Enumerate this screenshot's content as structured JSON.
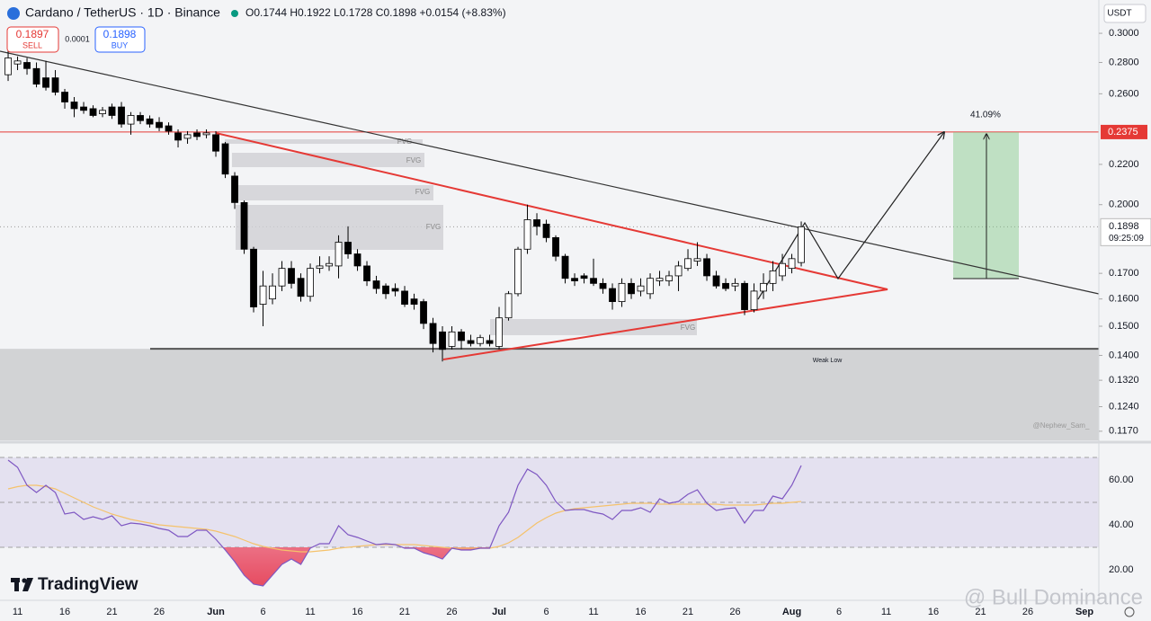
{
  "header": {
    "symbol": "Cardano / TetherUS · 1D · Binance",
    "ohlc": "O0.1744 H0.1922 L0.1728 C0.1898 +0.0154 (+8.83%)",
    "sell": {
      "price": "0.1897",
      "label": "SELL"
    },
    "spread": "0.0001",
    "buy": {
      "price": "0.1898",
      "label": "BUY"
    },
    "currency": "USDT"
  },
  "footer": {
    "brand": "TradingView",
    "watermark": "@ Bull Dominance"
  },
  "chart_data": [
    {
      "type": "candlestick",
      "log": true,
      "xlim": [
        -0.86,
        115.52
      ],
      "ylim": [
        0.1145,
        0.3246
      ],
      "yticks": [
        {
          "value": 0.3,
          "label": "0.3000"
        },
        {
          "value": 0.28,
          "label": "0.2800"
        },
        {
          "value": 0.26,
          "label": "0.2600"
        },
        {
          "value": 0.22,
          "label": "0.2200"
        },
        {
          "value": 0.2,
          "label": "0.2000"
        },
        {
          "value": 0.17,
          "label": "0.1700"
        },
        {
          "value": 0.16,
          "label": "0.1600"
        },
        {
          "value": 0.15,
          "label": "0.1500"
        },
        {
          "value": 0.14,
          "label": "0.1400"
        },
        {
          "value": 0.132,
          "label": "0.1320"
        },
        {
          "value": 0.124,
          "label": "0.1240"
        },
        {
          "value": 0.117,
          "label": "0.1170"
        }
      ],
      "xticks": [
        {
          "value": 1,
          "label": "11"
        },
        {
          "value": 6,
          "label": "16"
        },
        {
          "value": 11,
          "label": "21"
        },
        {
          "value": 16,
          "label": "26"
        },
        {
          "value": 22,
          "label": "Jun"
        },
        {
          "value": 27,
          "label": "6"
        },
        {
          "value": 32,
          "label": "11"
        },
        {
          "value": 37,
          "label": "16"
        },
        {
          "value": 42,
          "label": "21"
        },
        {
          "value": 47,
          "label": "26"
        },
        {
          "value": 52,
          "label": "Jul"
        },
        {
          "value": 57,
          "label": "6"
        },
        {
          "value": 62,
          "label": "11"
        },
        {
          "value": 67,
          "label": "16"
        },
        {
          "value": 72,
          "label": "21"
        },
        {
          "value": 77,
          "label": "26"
        },
        {
          "value": 83,
          "label": "Aug"
        },
        {
          "value": 88,
          "label": "6"
        },
        {
          "value": 93,
          "label": "11"
        },
        {
          "value": 98,
          "label": "16"
        },
        {
          "value": 103,
          "label": "21"
        },
        {
          "value": 108,
          "label": "26"
        },
        {
          "value": 114,
          "label": "Sep"
        }
      ],
      "open": [
        0.272,
        0.279,
        0.28,
        0.276,
        0.27,
        0.27,
        0.261,
        0.255,
        0.252,
        0.251,
        0.248,
        0.252,
        0.252,
        0.242,
        0.247,
        0.245,
        0.243,
        0.241,
        0.237,
        0.234,
        0.237,
        0.236,
        0.236,
        0.231,
        0.214,
        0.201,
        0.18,
        0.158,
        0.16,
        0.165,
        0.172,
        0.168,
        0.161,
        0.172,
        0.173,
        0.173,
        0.183,
        0.178,
        0.173,
        0.167,
        0.165,
        0.164,
        0.163,
        0.16,
        0.159,
        0.151,
        0.148,
        0.143,
        0.148,
        0.145,
        0.144,
        0.145,
        0.143,
        0.153,
        0.162,
        0.18,
        0.193,
        0.191,
        0.185,
        0.177,
        0.168,
        0.169,
        0.168,
        0.166,
        0.164,
        0.159,
        0.166,
        0.163,
        0.162,
        0.167,
        0.167,
        0.169,
        0.172,
        0.175,
        0.176,
        0.169,
        0.166,
        0.165,
        0.166,
        0.156,
        0.163,
        0.166,
        0.169,
        0.172,
        0.1744
      ],
      "high": [
        0.29,
        0.284,
        0.283,
        0.28,
        0.281,
        0.275,
        0.263,
        0.258,
        0.255,
        0.253,
        0.252,
        0.254,
        0.255,
        0.249,
        0.249,
        0.247,
        0.246,
        0.243,
        0.239,
        0.238,
        0.239,
        0.239,
        0.238,
        0.232,
        0.216,
        0.202,
        0.181,
        0.171,
        0.17,
        0.175,
        0.175,
        0.17,
        0.174,
        0.177,
        0.177,
        0.186,
        0.19,
        0.18,
        0.175,
        0.169,
        0.166,
        0.166,
        0.165,
        0.162,
        0.16,
        0.153,
        0.15,
        0.15,
        0.149,
        0.147,
        0.147,
        0.147,
        0.157,
        0.163,
        0.181,
        0.2,
        0.196,
        0.193,
        0.186,
        0.178,
        0.17,
        0.17,
        0.176,
        0.168,
        0.166,
        0.168,
        0.168,
        0.168,
        0.17,
        0.171,
        0.171,
        0.175,
        0.18,
        0.183,
        0.178,
        0.171,
        0.168,
        0.168,
        0.167,
        0.166,
        0.17,
        0.175,
        0.178,
        0.178,
        0.1922
      ],
      "low": [
        0.268,
        0.275,
        0.272,
        0.264,
        0.262,
        0.259,
        0.251,
        0.246,
        0.248,
        0.246,
        0.246,
        0.245,
        0.24,
        0.236,
        0.242,
        0.24,
        0.238,
        0.236,
        0.229,
        0.231,
        0.233,
        0.234,
        0.224,
        0.213,
        0.198,
        0.178,
        0.155,
        0.15,
        0.158,
        0.163,
        0.164,
        0.159,
        0.159,
        0.17,
        0.171,
        0.168,
        0.176,
        0.171,
        0.165,
        0.162,
        0.16,
        0.161,
        0.157,
        0.156,
        0.149,
        0.141,
        0.138,
        0.142,
        0.142,
        0.143,
        0.143,
        0.143,
        0.142,
        0.152,
        0.161,
        0.178,
        0.186,
        0.183,
        0.175,
        0.166,
        0.165,
        0.166,
        0.165,
        0.162,
        0.156,
        0.157,
        0.16,
        0.161,
        0.16,
        0.165,
        0.165,
        0.163,
        0.171,
        0.173,
        0.167,
        0.164,
        0.163,
        0.163,
        0.154,
        0.155,
        0.16,
        0.163,
        0.167,
        0.17,
        0.1728
      ],
      "close": [
        0.283,
        0.281,
        0.276,
        0.266,
        0.264,
        0.261,
        0.255,
        0.251,
        0.25,
        0.247,
        0.25,
        0.247,
        0.242,
        0.247,
        0.244,
        0.242,
        0.24,
        0.238,
        0.233,
        0.236,
        0.235,
        0.237,
        0.227,
        0.215,
        0.201,
        0.18,
        0.157,
        0.165,
        0.165,
        0.172,
        0.166,
        0.161,
        0.172,
        0.173,
        0.174,
        0.183,
        0.178,
        0.173,
        0.167,
        0.164,
        0.162,
        0.163,
        0.158,
        0.158,
        0.151,
        0.144,
        0.142,
        0.148,
        0.145,
        0.144,
        0.146,
        0.144,
        0.153,
        0.162,
        0.18,
        0.193,
        0.19,
        0.185,
        0.177,
        0.168,
        0.167,
        0.168,
        0.166,
        0.164,
        0.159,
        0.166,
        0.162,
        0.165,
        0.168,
        0.168,
        0.169,
        0.173,
        0.176,
        0.176,
        0.169,
        0.165,
        0.164,
        0.166,
        0.156,
        0.163,
        0.166,
        0.171,
        0.174,
        0.176,
        0.1898
      ],
      "up_color": "#ffffff",
      "down_color": "#000000",
      "price_line": {
        "value": 0.2375,
        "label": "0.2375",
        "color": "#e53935"
      },
      "last_price": {
        "value": 0.1898,
        "label": "0.1898",
        "countdown": "09:25:09"
      },
      "weak_low": {
        "value": 0.1422,
        "label": "Weak Low"
      },
      "annotations": {
        "fvg": [
          "FVG",
          "FVG",
          "FVG",
          "FVG",
          "FVG"
        ],
        "measure": "41.09%",
        "credit": "@Nephew_Sam_"
      }
    },
    {
      "type": "line",
      "ylim": [
        7.6,
        73.6
      ],
      "yticks": [
        {
          "value": 60,
          "label": "60.00"
        },
        {
          "value": 40,
          "label": "40.00"
        },
        {
          "value": 20,
          "label": "20.00"
        }
      ],
      "levels": [
        70,
        50,
        30
      ],
      "series": [
        {
          "color": "#7e57c2",
          "values": [
            68.8,
            65.6,
            57.6,
            54.4,
            57.6,
            54.4,
            44.8,
            45.6,
            42.4,
            43.6,
            42.4,
            44,
            39.6,
            40.8,
            40.4,
            39.6,
            38.4,
            37.6,
            34.8,
            34.8,
            37.6,
            37.6,
            33.6,
            28.8,
            23.6,
            17.6,
            13.6,
            12.8,
            17.6,
            22.4,
            24.8,
            22.4,
            29.6,
            31.6,
            31.6,
            39.6,
            35.6,
            34.4,
            32.8,
            31.2,
            31.6,
            31.2,
            29.6,
            29.6,
            27.6,
            26.4,
            24.8,
            29.6,
            28.8,
            28.8,
            29.6,
            29.6,
            39.6,
            45.6,
            57.6,
            64.8,
            62.4,
            57.6,
            50.4,
            46.4,
            46.8,
            46.8,
            45.6,
            44.8,
            42.4,
            46.4,
            46.4,
            47.6,
            45.6,
            51.6,
            49.6,
            50.4,
            53.6,
            55.6,
            49.6,
            46.4,
            47.2,
            47.6,
            40.8,
            46.4,
            46.4,
            52.8,
            51.6,
            57.6,
            66.4
          ]
        },
        {
          "color": "#f5c26b",
          "values": [
            56,
            57,
            57.6,
            57.6,
            57,
            56,
            54,
            52,
            50,
            48,
            46.4,
            44.8,
            43.6,
            42.4,
            41.6,
            40.8,
            40,
            39.6,
            39.2,
            38.8,
            38.4,
            38,
            37.2,
            36,
            34.8,
            33.2,
            31.6,
            30.4,
            29.6,
            28.8,
            28.4,
            28,
            28,
            28.4,
            28.8,
            29.6,
            30,
            30.4,
            30.8,
            31.2,
            31.2,
            31.2,
            31.2,
            31.2,
            30.8,
            30.4,
            30,
            29.6,
            29.6,
            29.6,
            29.6,
            29.6,
            30.4,
            32,
            34.4,
            37.6,
            40.8,
            43.2,
            45.2,
            46.4,
            47.2,
            47.6,
            48,
            48.4,
            48.8,
            49.2,
            49.6,
            49.6,
            49.6,
            49.2,
            49.2,
            49.2,
            49.2,
            49.2,
            49.2,
            49.2,
            48.8,
            48.8,
            48.8,
            48.8,
            49.2,
            49.6,
            49.6,
            50,
            50.4
          ]
        }
      ]
    }
  ]
}
